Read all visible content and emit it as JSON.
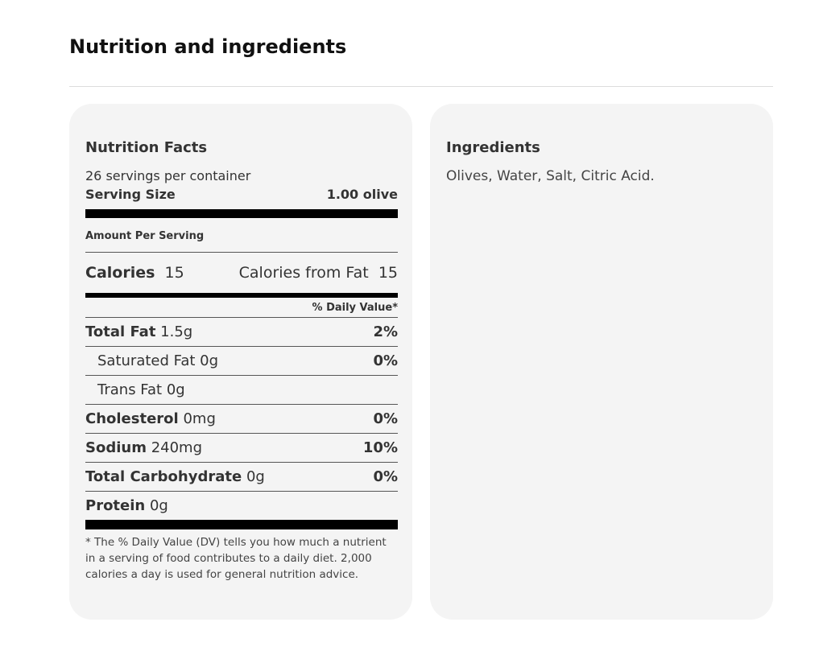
{
  "header": {
    "title": "Nutrition and ingredients"
  },
  "nutrition": {
    "title": "Nutrition Facts",
    "servings": "26 servings per container",
    "serving_size": {
      "label": "Serving Size",
      "value": "1.00 olive"
    },
    "amount_per_serving": "Amount Per Serving",
    "calories": {
      "label": "Calories",
      "value": "15",
      "from_fat_label": "Calories from Fat",
      "from_fat_value": "15"
    },
    "dv_header": "% Daily Value*",
    "rows": [
      {
        "name": "Total Fat",
        "amount": "1.5g",
        "dv": "2%"
      },
      {
        "name": "Saturated Fat",
        "amount": "0g",
        "dv": "0%"
      },
      {
        "name": "Trans Fat",
        "amount": "0g"
      },
      {
        "name": "Cholesterol",
        "amount": "0mg",
        "dv": "0%"
      },
      {
        "name": "Sodium",
        "amount": "240mg",
        "dv": "10%"
      },
      {
        "name": "Total Carbohydrate",
        "amount": "0g",
        "dv": "0%"
      },
      {
        "name": "Protein",
        "amount": "0g"
      }
    ],
    "footnote": "* The % Daily Value (DV) tells you how much a nutrient in a serving of food contributes to a daily diet. 2,000 calories a day is used for general nutrition advice."
  },
  "ingredients": {
    "title": "Ingredients",
    "text": "Olives, Water, Salt, Citric Acid."
  }
}
